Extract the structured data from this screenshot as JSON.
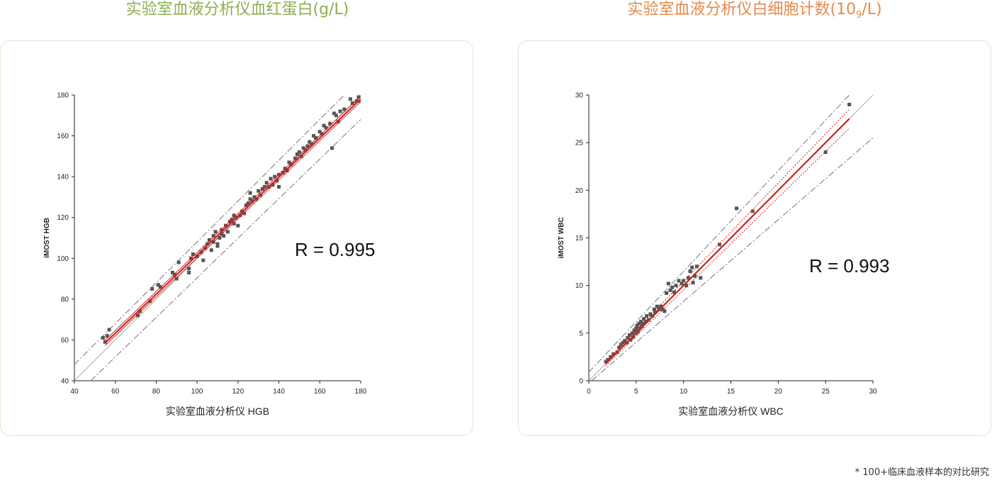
{
  "page": {
    "title_left": {
      "text": "实验室血液分析仪血红蛋白(g/L)",
      "color": "#8bb04f"
    },
    "title_right": {
      "prefix": "实验室血液分析仪白细胞计数(10",
      "sub": "9",
      "suffix": "/L)",
      "color": "#e48a4a"
    },
    "footnote": "* 100+临床血液样本的对比研究",
    "card_border_color": "#e3e7cd"
  },
  "chart_data": [
    {
      "type": "scatter",
      "title": "",
      "xlabel": "实验室血液分析仪 HGB",
      "ylabel": "iMOST HGB",
      "xlim": [
        40,
        180
      ],
      "ylim": [
        40,
        180
      ],
      "xticks": [
        "40",
        "60",
        "80",
        "100",
        "120",
        "140",
        "160",
        "180"
      ],
      "yticks": [
        "40",
        "60",
        "80",
        "100",
        "120",
        "140",
        "160",
        "180"
      ],
      "annotation": "R = 0.995",
      "grid": false,
      "marker_color": "#555555",
      "fit_color": "#cc2222",
      "points": [
        [
          54,
          61
        ],
        [
          56,
          62
        ],
        [
          57,
          65
        ],
        [
          55,
          59
        ],
        [
          71,
          72
        ],
        [
          72,
          74
        ],
        [
          77,
          79
        ],
        [
          78,
          85
        ],
        [
          81,
          87
        ],
        [
          82,
          86
        ],
        [
          88,
          93
        ],
        [
          89,
          92
        ],
        [
          90,
          90
        ],
        [
          91,
          98
        ],
        [
          96,
          95
        ],
        [
          96,
          93
        ],
        [
          97,
          100
        ],
        [
          98,
          102
        ],
        [
          100,
          101
        ],
        [
          102,
          103
        ],
        [
          103,
          99
        ],
        [
          104,
          105
        ],
        [
          105,
          107
        ],
        [
          106,
          109
        ],
        [
          107,
          104
        ],
        [
          108,
          108
        ],
        [
          108,
          111
        ],
        [
          109,
          113
        ],
        [
          110,
          106
        ],
        [
          110,
          107
        ],
        [
          111,
          110
        ],
        [
          112,
          112
        ],
        [
          112,
          114
        ],
        [
          113,
          111
        ],
        [
          114,
          116
        ],
        [
          115,
          113
        ],
        [
          116,
          118
        ],
        [
          117,
          119
        ],
        [
          118,
          117
        ],
        [
          118,
          121
        ],
        [
          119,
          120
        ],
        [
          120,
          116
        ],
        [
          121,
          121
        ],
        [
          122,
          123
        ],
        [
          123,
          122
        ],
        [
          124,
          126
        ],
        [
          125,
          127
        ],
        [
          126,
          129
        ],
        [
          126,
          132
        ],
        [
          127,
          128
        ],
        [
          128,
          130
        ],
        [
          129,
          129
        ],
        [
          130,
          133
        ],
        [
          131,
          131
        ],
        [
          132,
          134
        ],
        [
          133,
          135
        ],
        [
          134,
          137
        ],
        [
          135,
          135
        ],
        [
          136,
          139
        ],
        [
          137,
          136
        ],
        [
          138,
          140
        ],
        [
          139,
          138
        ],
        [
          140,
          135
        ],
        [
          140,
          141
        ],
        [
          142,
          142
        ],
        [
          143,
          144
        ],
        [
          144,
          143
        ],
        [
          145,
          147
        ],
        [
          146,
          146
        ],
        [
          148,
          149
        ],
        [
          149,
          151
        ],
        [
          150,
          152
        ],
        [
          151,
          150
        ],
        [
          152,
          154
        ],
        [
          153,
          153
        ],
        [
          154,
          155
        ],
        [
          155,
          157
        ],
        [
          156,
          156
        ],
        [
          157,
          160
        ],
        [
          158,
          159
        ],
        [
          160,
          162
        ],
        [
          161,
          161
        ],
        [
          162,
          165
        ],
        [
          163,
          164
        ],
        [
          165,
          166
        ],
        [
          166,
          154
        ],
        [
          167,
          171
        ],
        [
          168,
          170
        ],
        [
          169,
          167
        ],
        [
          170,
          172
        ],
        [
          172,
          173
        ],
        [
          175,
          178
        ],
        [
          176,
          176
        ],
        [
          178,
          177
        ],
        [
          179,
          179
        ],
        [
          180,
          177
        ]
      ],
      "fit": {
        "x": [
          55,
          180
        ],
        "y": [
          58.5,
          178
        ]
      },
      "ci_upper": {
        "x": [
          55,
          180
        ],
        "y": [
          59.8,
          179.3
        ]
      },
      "ci_lower": {
        "x": [
          55,
          180
        ],
        "y": [
          57.2,
          176.7
        ]
      },
      "identity": {
        "x": [
          40,
          180
        ],
        "y": [
          40,
          180
        ]
      },
      "loa_upper": {
        "x": [
          40,
          180
        ],
        "y": [
          48,
          188
        ]
      },
      "loa_lower": {
        "x": [
          48,
          180
        ],
        "y": [
          40,
          168
        ]
      }
    },
    {
      "type": "scatter",
      "title": "",
      "xlabel": "实验室血液分析仪 WBC",
      "ylabel": "iMOST WBC",
      "xlim": [
        0,
        30
      ],
      "ylim": [
        0,
        30
      ],
      "xticks": [
        "0",
        "5",
        "10",
        "15",
        "20",
        "25",
        "30"
      ],
      "yticks": [
        "0",
        "5",
        "10",
        "15",
        "20",
        "25",
        "30"
      ],
      "annotation": "R = 0.993",
      "grid": false,
      "marker_color": "#555555",
      "fit_color": "#cc2222",
      "points": [
        [
          1.8,
          2.0
        ],
        [
          2.0,
          2.2
        ],
        [
          2.3,
          2.5
        ],
        [
          2.6,
          2.8
        ],
        [
          3.0,
          3.0
        ],
        [
          3.2,
          3.5
        ],
        [
          3.4,
          3.8
        ],
        [
          3.6,
          4.0
        ],
        [
          3.8,
          4.2
        ],
        [
          4.0,
          4.0
        ],
        [
          4.1,
          4.5
        ],
        [
          4.3,
          4.8
        ],
        [
          4.4,
          4.3
        ],
        [
          4.6,
          5.0
        ],
        [
          4.7,
          4.6
        ],
        [
          4.8,
          5.3
        ],
        [
          5.0,
          5.5
        ],
        [
          5.0,
          5.0
        ],
        [
          5.1,
          5.8
        ],
        [
          5.2,
          5.2
        ],
        [
          5.3,
          6.0
        ],
        [
          5.4,
          5.5
        ],
        [
          5.5,
          6.2
        ],
        [
          5.6,
          5.7
        ],
        [
          5.7,
          6.0
        ],
        [
          5.8,
          6.5
        ],
        [
          6.0,
          6.2
        ],
        [
          6.1,
          6.8
        ],
        [
          6.3,
          6.4
        ],
        [
          6.5,
          7.0
        ],
        [
          6.7,
          6.8
        ],
        [
          6.9,
          7.5
        ],
        [
          7.0,
          7.2
        ],
        [
          7.2,
          7.8
        ],
        [
          7.4,
          7.5
        ],
        [
          7.6,
          7.8
        ],
        [
          7.8,
          7.5
        ],
        [
          8.0,
          7.3
        ],
        [
          8.2,
          9.2
        ],
        [
          8.4,
          10.2
        ],
        [
          8.6,
          9.5
        ],
        [
          8.8,
          9.8
        ],
        [
          9.0,
          9.3
        ],
        [
          9.2,
          10.0
        ],
        [
          9.5,
          10.5
        ],
        [
          9.8,
          10.2
        ],
        [
          10.0,
          10.5
        ],
        [
          10.3,
          10.0
        ],
        [
          10.5,
          10.8
        ],
        [
          10.7,
          11.5
        ],
        [
          10.9,
          11.9
        ],
        [
          11.0,
          10.3
        ],
        [
          11.2,
          11.0
        ],
        [
          11.4,
          12.0
        ],
        [
          11.8,
          10.8
        ],
        [
          13.8,
          14.3
        ],
        [
          15.6,
          18.1
        ],
        [
          17.3,
          17.8
        ],
        [
          25.0,
          24.0
        ],
        [
          27.5,
          29.0
        ]
      ],
      "fit": {
        "x": [
          1.8,
          27.5
        ],
        "y": [
          1.8,
          27.5
        ]
      },
      "ci_upper": {
        "x": [
          1.8,
          27.5
        ],
        "y": [
          2.0,
          28.5
        ]
      },
      "ci_lower": {
        "x": [
          1.8,
          27.5
        ],
        "y": [
          1.6,
          26.5
        ]
      },
      "identity": {
        "x": [
          0,
          30
        ],
        "y": [
          0,
          30
        ]
      },
      "loa_upper": {
        "x": [
          0,
          27.5
        ],
        "y": [
          0.9,
          30
        ]
      },
      "loa_lower": {
        "x": [
          0.3,
          30
        ],
        "y": [
          0,
          25.5
        ]
      }
    }
  ]
}
